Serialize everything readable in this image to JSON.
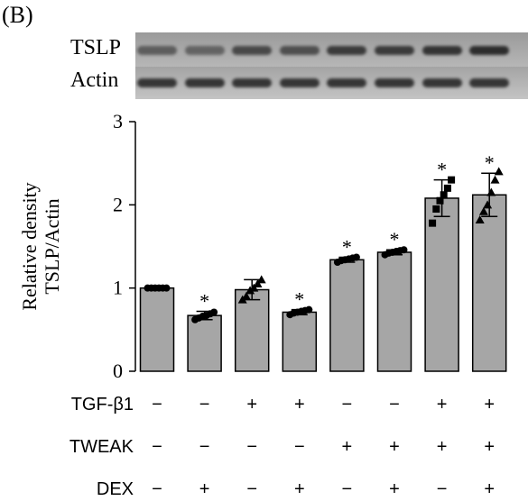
{
  "panel_label": "(B)",
  "blot": {
    "labels": [
      "TSLP",
      "Actin"
    ],
    "tslp_intensity": [
      0.55,
      0.5,
      0.7,
      0.65,
      0.8,
      0.8,
      0.85,
      0.9
    ],
    "actin_intensity": [
      0.85,
      0.85,
      0.85,
      0.85,
      0.85,
      0.85,
      0.85,
      0.85
    ]
  },
  "chart_data": {
    "type": "bar",
    "title": "",
    "ylabel_lines": [
      "Relative density",
      "TSLP/Actin"
    ],
    "ylim": [
      0,
      3
    ],
    "yticks": [
      "0",
      "1",
      "2",
      "3"
    ],
    "bar_color": "#a6a6a6",
    "values": [
      1.0,
      0.67,
      0.98,
      0.71,
      1.34,
      1.43,
      2.08,
      2.12
    ],
    "errors": [
      0.02,
      0.05,
      0.12,
      0.03,
      0.03,
      0.03,
      0.22,
      0.26
    ],
    "significance": [
      "",
      "*",
      "",
      "*",
      "*",
      "*",
      "*",
      "*"
    ],
    "points": [
      [
        1.0,
        1.0,
        1.0,
        1.0,
        1.0,
        1.0
      ],
      [
        0.62,
        0.64,
        0.66,
        0.67,
        0.69,
        0.71
      ],
      [
        0.86,
        0.9,
        0.97,
        1.0,
        1.05,
        1.1
      ],
      [
        0.68,
        0.7,
        0.71,
        0.72,
        0.73,
        0.74
      ],
      [
        1.31,
        1.33,
        1.34,
        1.35,
        1.36,
        1.37
      ],
      [
        1.4,
        1.42,
        1.43,
        1.44,
        1.45,
        1.46
      ],
      [
        1.78,
        1.95,
        2.05,
        2.12,
        2.2,
        2.3
      ],
      [
        1.82,
        1.92,
        2.0,
        2.15,
        2.3,
        2.4
      ]
    ],
    "treatments": [
      {
        "name": "TGF-β1",
        "signs": [
          "−",
          "−",
          "+",
          "+",
          "−",
          "−",
          "+",
          "+"
        ]
      },
      {
        "name": "TWEAK",
        "signs": [
          "−",
          "−",
          "−",
          "−",
          "+",
          "+",
          "+",
          "+"
        ]
      },
      {
        "name": "DEX",
        "signs": [
          "−",
          "+",
          "−",
          "+",
          "−",
          "+",
          "−",
          "+"
        ]
      }
    ]
  }
}
